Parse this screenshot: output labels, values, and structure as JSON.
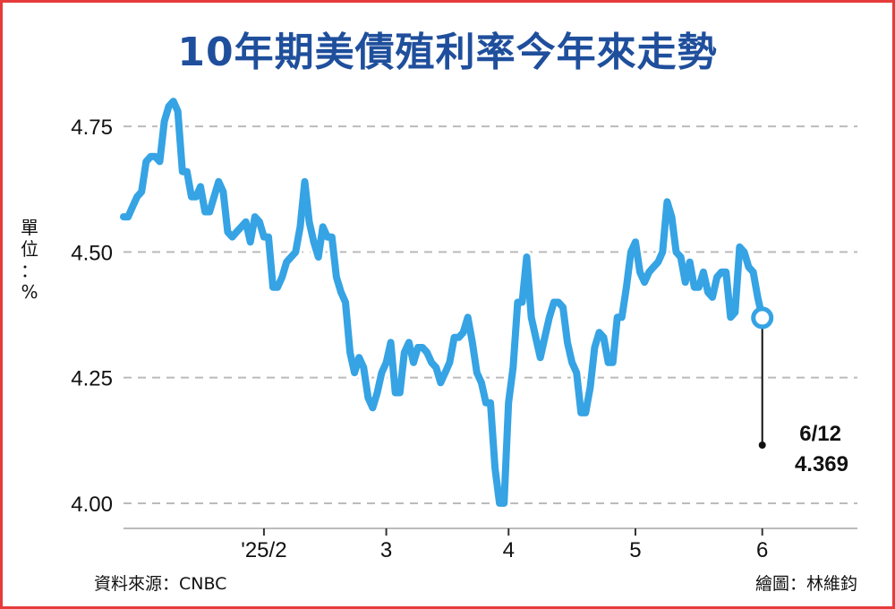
{
  "title": "10年期美債殖利率今年來走勢",
  "unit": [
    "單",
    "位",
    "：",
    "%"
  ],
  "source": "資料來源：CNBC",
  "credit": "繪圖：林維鈞",
  "colors": {
    "line": "#35a3e4",
    "grid": "#bbbbbb",
    "title": "#1f4f9c",
    "border": "#e63b3b"
  },
  "chart_data": {
    "type": "line",
    "title": "10年期美債殖利率今年來走勢",
    "ylabel": "%",
    "ylim": [
      3.95,
      4.85
    ],
    "yticks": [
      4.0,
      4.25,
      4.5,
      4.75
    ],
    "ytick_labels": [
      "4.00",
      "4.25",
      "4.50",
      "4.75"
    ],
    "grid": "horizontal dashed",
    "xlim": [
      0,
      162
    ],
    "xtick_positions": [
      31,
      58,
      85,
      113,
      141
    ],
    "xtick_labels": [
      "'25/2",
      "3",
      "4",
      "5",
      "6"
    ],
    "series": [
      {
        "values": [
          4.57,
          4.57,
          4.59,
          4.61,
          4.62,
          4.68,
          4.69,
          4.69,
          4.68,
          4.76,
          4.79,
          4.8,
          4.78,
          4.66,
          4.66,
          4.61,
          4.61,
          4.63,
          4.58,
          4.58,
          4.61,
          4.64,
          4.62,
          4.54,
          4.53,
          4.54,
          4.55,
          4.56,
          4.52,
          4.57,
          4.56,
          4.53,
          4.53,
          4.43,
          4.43,
          4.45,
          4.48,
          4.49,
          4.5,
          4.55,
          4.64,
          4.56,
          4.52,
          4.49,
          4.55,
          4.53,
          4.53,
          4.45,
          4.42,
          4.4,
          4.3,
          4.26,
          4.29,
          4.27,
          4.21,
          4.19,
          4.22,
          4.26,
          4.28,
          4.32,
          4.22,
          4.22,
          4.3,
          4.32,
          4.28,
          4.31,
          4.31,
          4.3,
          4.28,
          4.27,
          4.24,
          4.26,
          4.28,
          4.33,
          4.33,
          4.34,
          4.37,
          4.32,
          4.26,
          4.24,
          4.2,
          4.2,
          4.07,
          4.0,
          4.0,
          4.2,
          4.27,
          4.4,
          4.4,
          4.49,
          4.37,
          4.33,
          4.29,
          4.33,
          4.37,
          4.4,
          4.4,
          4.39,
          4.32,
          4.28,
          4.26,
          4.18,
          4.18,
          4.23,
          4.31,
          4.34,
          4.33,
          4.28,
          4.28,
          4.37,
          4.37,
          4.43,
          4.5,
          4.52,
          4.46,
          4.44,
          4.46,
          4.47,
          4.48,
          4.5,
          4.6,
          4.57,
          4.5,
          4.49,
          4.44,
          4.48,
          4.43,
          4.43,
          4.46,
          4.42,
          4.41,
          4.45,
          4.46,
          4.46,
          4.37,
          4.38,
          4.51,
          4.5,
          4.47,
          4.46,
          4.41,
          4.369
        ]
      }
    ],
    "annotation": {
      "date": "6/12",
      "value": "4.369"
    }
  }
}
